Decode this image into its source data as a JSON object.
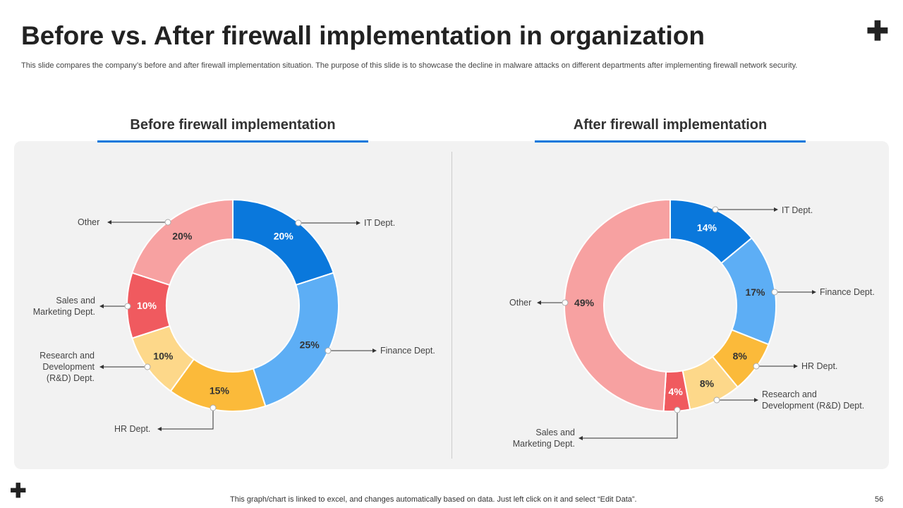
{
  "title": "Before vs. After firewall implementation in organization",
  "subtitle": "This slide compares the company’s before and after firewall implementation situation. The purpose of this slide is to showcase the decline in malware attacks on different departments after implementing firewall network security.",
  "footer": "This graph/chart is linked to excel, and changes automatically based on data. Just left click on it and select “Edit Data”.",
  "page_number": "56",
  "colors": {
    "it": "#0a78dc",
    "finance": "#5daef5",
    "hr": "#fbba3a",
    "rd": "#fdd88a",
    "sales": "#f05a5f",
    "other": "#f7a1a1",
    "accent": "#0a78dc"
  },
  "chart_data": [
    {
      "type": "pie",
      "title": "Before firewall implementation",
      "categories": [
        "IT Dept.",
        "Finance Dept.",
        "HR Dept.",
        "Research and Development (R&D) Dept.",
        "Sales and Marketing Dept.",
        "Other"
      ],
      "values": [
        20,
        25,
        15,
        10,
        10,
        20
      ],
      "labels": [
        "20%",
        "25%",
        "15%",
        "10%",
        "10%",
        "20%"
      ]
    },
    {
      "type": "pie",
      "title": "After firewall implementation",
      "categories": [
        "IT Dept.",
        "Finance Dept.",
        "HR Dept.",
        "Research and Development (R&D) Dept.",
        "Sales and Marketing Dept.",
        "Other"
      ],
      "values": [
        14,
        17,
        8,
        8,
        4,
        49
      ],
      "labels": [
        "14%",
        "17%",
        "8%",
        "8%",
        "4%",
        "49%"
      ]
    }
  ],
  "legend_labels": {
    "it": "IT Dept.",
    "finance": "Finance Dept.",
    "hr": "HR Dept.",
    "rd_l1": "Research and",
    "rd_l2": "Development",
    "rd_l3": "(R&D) Dept.",
    "rd_l2b": "Development (R&D) Dept.",
    "sales_l1": "Sales and",
    "sales_l2": "Marketing Dept.",
    "other": "Other"
  }
}
